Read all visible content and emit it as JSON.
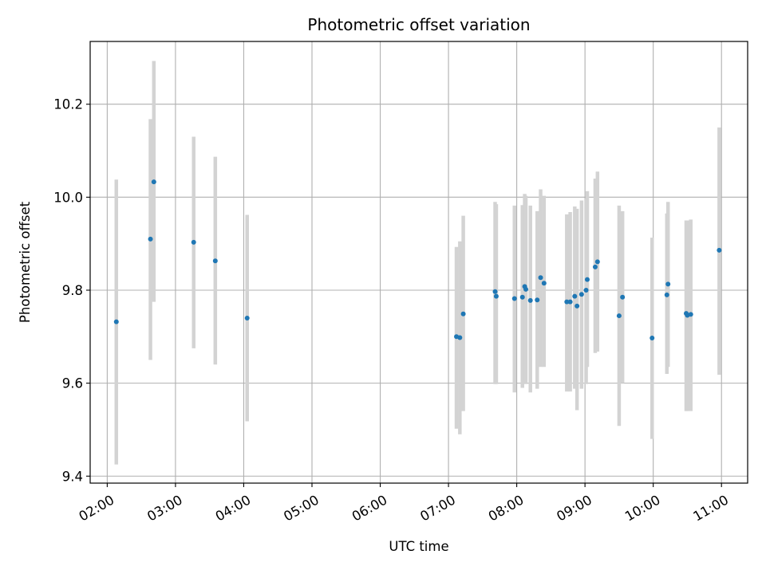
{
  "chart_data": {
    "type": "scatter",
    "title": "Photometric offset variation",
    "xlabel": "UTC time",
    "ylabel": "Photometric offset",
    "x_ticks": [
      "02:00",
      "03:00",
      "04:00",
      "05:00",
      "06:00",
      "07:00",
      "08:00",
      "09:00",
      "10:00",
      "11:00"
    ],
    "y_ticks": [
      "9.4",
      "9.6",
      "9.8",
      "10.0",
      "10.2"
    ],
    "xlim": [
      "01:45",
      "11:23"
    ],
    "ylim": [
      9.385,
      10.335
    ],
    "grid": true,
    "marker_color": "#1f77b4",
    "errorbar_color": "#d3d3d3",
    "series": [
      {
        "points": [
          {
            "t": "02:08",
            "y": 9.732,
            "lo": 9.425,
            "hi": 10.038
          },
          {
            "t": "02:38",
            "y": 9.91,
            "lo": 9.65,
            "hi": 10.168
          },
          {
            "t": "02:41",
            "y": 10.033,
            "lo": 9.775,
            "hi": 10.293
          },
          {
            "t": "03:16",
            "y": 9.903,
            "lo": 9.675,
            "hi": 10.13
          },
          {
            "t": "03:35",
            "y": 9.863,
            "lo": 9.64,
            "hi": 10.087
          },
          {
            "t": "04:03",
            "y": 9.74,
            "lo": 9.518,
            "hi": 9.962
          },
          {
            "t": "07:07",
            "y": 9.7,
            "lo": 9.502,
            "hi": 9.893
          },
          {
            "t": "07:10",
            "y": 9.698,
            "lo": 9.49,
            "hi": 9.905
          },
          {
            "t": "07:13",
            "y": 9.749,
            "lo": 9.54,
            "hi": 9.96
          },
          {
            "t": "07:41",
            "y": 9.797,
            "lo": 9.598,
            "hi": 9.99
          },
          {
            "t": "07:42",
            "y": 9.787,
            "lo": 9.598,
            "hi": 9.985
          },
          {
            "t": "07:58",
            "y": 9.782,
            "lo": 9.58,
            "hi": 9.982
          },
          {
            "t": "08:05",
            "y": 9.785,
            "lo": 9.59,
            "hi": 9.983
          },
          {
            "t": "08:07",
            "y": 9.808,
            "lo": 9.605,
            "hi": 10.007
          },
          {
            "t": "08:08",
            "y": 9.802,
            "lo": 9.598,
            "hi": 10.003
          },
          {
            "t": "08:12",
            "y": 9.778,
            "lo": 9.58,
            "hi": 9.982
          },
          {
            "t": "08:18",
            "y": 9.779,
            "lo": 9.588,
            "hi": 9.97
          },
          {
            "t": "08:21",
            "y": 9.827,
            "lo": 9.635,
            "hi": 10.017
          },
          {
            "t": "08:24",
            "y": 9.815,
            "lo": 9.635,
            "hi": 10.003
          },
          {
            "t": "08:44",
            "y": 9.775,
            "lo": 9.582,
            "hi": 9.963
          },
          {
            "t": "08:47",
            "y": 9.775,
            "lo": 9.582,
            "hi": 9.968
          },
          {
            "t": "08:51",
            "y": 9.787,
            "lo": 9.588,
            "hi": 9.98
          },
          {
            "t": "08:53",
            "y": 9.766,
            "lo": 9.542,
            "hi": 9.975
          },
          {
            "t": "08:57",
            "y": 9.791,
            "lo": 9.588,
            "hi": 9.993
          },
          {
            "t": "09:01",
            "y": 9.8,
            "lo": 9.598,
            "hi": 9.997
          },
          {
            "t": "09:02",
            "y": 9.823,
            "lo": 9.635,
            "hi": 10.013
          },
          {
            "t": "09:09",
            "y": 9.85,
            "lo": 9.665,
            "hi": 10.04
          },
          {
            "t": "09:11",
            "y": 9.861,
            "lo": 9.668,
            "hi": 10.055
          },
          {
            "t": "09:30",
            "y": 9.745,
            "lo": 9.508,
            "hi": 9.982
          },
          {
            "t": "09:33",
            "y": 9.785,
            "lo": 9.6,
            "hi": 9.97
          },
          {
            "t": "09:59",
            "y": 9.697,
            "lo": 9.48,
            "hi": 9.913
          },
          {
            "t": "10:12",
            "y": 9.79,
            "lo": 9.62,
            "hi": 9.965
          },
          {
            "t": "10:13",
            "y": 9.813,
            "lo": 9.635,
            "hi": 9.99
          },
          {
            "t": "10:29",
            "y": 9.75,
            "lo": 9.54,
            "hi": 9.95
          },
          {
            "t": "10:30",
            "y": 9.746,
            "lo": 9.54,
            "hi": 9.95
          },
          {
            "t": "10:33",
            "y": 9.748,
            "lo": 9.54,
            "hi": 9.952
          },
          {
            "t": "10:58",
            "y": 9.886,
            "lo": 9.618,
            "hi": 10.15
          }
        ]
      }
    ]
  }
}
